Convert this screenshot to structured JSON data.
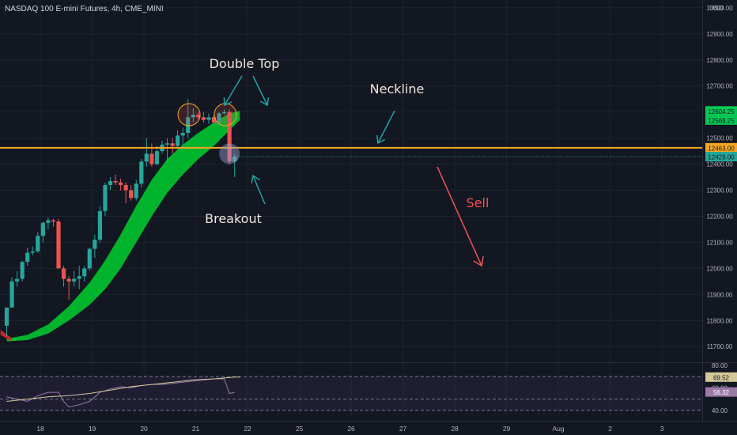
{
  "header": {
    "symbol_line": "NASDAQ 100 E-mini Futures, 4h, CME_MINI",
    "currency": "USD"
  },
  "chart_data": {
    "type": "candlestick",
    "price_axis": {
      "ylim": [
        11640,
        13030
      ],
      "ticks": [
        11700,
        11800,
        11900,
        12000,
        12100,
        12200,
        12300,
        12400,
        12500,
        12600,
        12700,
        12800,
        12900,
        13000
      ],
      "tick_labels": [
        "11700.00",
        "11800.00",
        "11900.00",
        "12000.00",
        "12100.00",
        "12200.00",
        "12300.00",
        "12400.00",
        "12500.00",
        "12600.00",
        "12700.00",
        "12800.00",
        "12900.00",
        "13000.00"
      ]
    },
    "time_axis": {
      "labels": [
        "18",
        "19",
        "20",
        "21",
        "22",
        "25",
        "26",
        "27",
        "28",
        "29",
        "Aug",
        "2",
        "3"
      ],
      "label_slots": [
        6.5,
        16.5,
        26.5,
        36.5,
        46.5,
        56.5,
        66.5,
        76.5,
        86.5,
        96.5,
        106.5,
        116.5,
        126.5
      ]
    },
    "candles": [
      {
        "o": 11780,
        "h": 11850,
        "l": 11740,
        "c": 11850
      },
      {
        "o": 11850,
        "h": 11965,
        "l": 11850,
        "c": 11950
      },
      {
        "o": 11950,
        "h": 11990,
        "l": 11930,
        "c": 11960
      },
      {
        "o": 11960,
        "h": 12030,
        "l": 11950,
        "c": 12025
      },
      {
        "o": 12025,
        "h": 12080,
        "l": 12010,
        "c": 12060
      },
      {
        "o": 12060,
        "h": 12085,
        "l": 12050,
        "c": 12065
      },
      {
        "o": 12065,
        "h": 12140,
        "l": 12060,
        "c": 12125
      },
      {
        "o": 12125,
        "h": 12180,
        "l": 12100,
        "c": 12175
      },
      {
        "o": 12175,
        "h": 12195,
        "l": 12150,
        "c": 12185
      },
      {
        "o": 12185,
        "h": 12190,
        "l": 12160,
        "c": 12180
      },
      {
        "o": 12180,
        "h": 12190,
        "l": 12000,
        "c": 12000
      },
      {
        "o": 12000,
        "h": 12010,
        "l": 11930,
        "c": 11960
      },
      {
        "o": 11960,
        "h": 11970,
        "l": 11880,
        "c": 11950
      },
      {
        "o": 11950,
        "h": 11990,
        "l": 11930,
        "c": 11960
      },
      {
        "o": 11960,
        "h": 12010,
        "l": 11920,
        "c": 11970
      },
      {
        "o": 11970,
        "h": 12010,
        "l": 11950,
        "c": 12000
      },
      {
        "o": 12000,
        "h": 12080,
        "l": 11990,
        "c": 12075
      },
      {
        "o": 12075,
        "h": 12130,
        "l": 12040,
        "c": 12110
      },
      {
        "o": 12110,
        "h": 12240,
        "l": 12100,
        "c": 12220
      },
      {
        "o": 12220,
        "h": 12330,
        "l": 12200,
        "c": 12320
      },
      {
        "o": 12320,
        "h": 12350,
        "l": 12300,
        "c": 12335
      },
      {
        "o": 12335,
        "h": 12360,
        "l": 12320,
        "c": 12330
      },
      {
        "o": 12330,
        "h": 12345,
        "l": 12300,
        "c": 12320
      },
      {
        "o": 12320,
        "h": 12330,
        "l": 12250,
        "c": 12300
      },
      {
        "o": 12300,
        "h": 12320,
        "l": 12260,
        "c": 12270
      },
      {
        "o": 12270,
        "h": 12340,
        "l": 12260,
        "c": 12325
      },
      {
        "o": 12325,
        "h": 12420,
        "l": 12310,
        "c": 12410
      },
      {
        "o": 12410,
        "h": 12500,
        "l": 12390,
        "c": 12440
      },
      {
        "o": 12440,
        "h": 12480,
        "l": 12390,
        "c": 12400
      },
      {
        "o": 12400,
        "h": 12470,
        "l": 12395,
        "c": 12450
      },
      {
        "o": 12450,
        "h": 12490,
        "l": 12440,
        "c": 12475
      },
      {
        "o": 12475,
        "h": 12500,
        "l": 12400,
        "c": 12480
      },
      {
        "o": 12480,
        "h": 12500,
        "l": 12440,
        "c": 12470
      },
      {
        "o": 12470,
        "h": 12530,
        "l": 12460,
        "c": 12510
      },
      {
        "o": 12510,
        "h": 12540,
        "l": 12470,
        "c": 12520
      },
      {
        "o": 12520,
        "h": 12650,
        "l": 12500,
        "c": 12580
      },
      {
        "o": 12580,
        "h": 12615,
        "l": 12560,
        "c": 12590
      },
      {
        "o": 12590,
        "h": 12600,
        "l": 12570,
        "c": 12580
      },
      {
        "o": 12580,
        "h": 12600,
        "l": 12560,
        "c": 12570
      },
      {
        "o": 12570,
        "h": 12595,
        "l": 12555,
        "c": 12580
      },
      {
        "o": 12580,
        "h": 12590,
        "l": 12555,
        "c": 12560
      },
      {
        "o": 12560,
        "h": 12600,
        "l": 12550,
        "c": 12595
      },
      {
        "o": 12595,
        "h": 12610,
        "l": 12590,
        "c": 12600
      },
      {
        "o": 12600,
        "h": 12610,
        "l": 12400,
        "c": 12410
      },
      {
        "o": 12410,
        "h": 12440,
        "l": 12350,
        "c": 12429
      }
    ],
    "ma_band": {
      "upper": [
        [
          0,
          11730
        ],
        [
          4,
          11745
        ],
        [
          8,
          11785
        ],
        [
          12,
          11855
        ],
        [
          16,
          11945
        ],
        [
          19,
          12030
        ],
        [
          22,
          12130
        ],
        [
          25,
          12240
        ],
        [
          28,
          12340
        ],
        [
          31,
          12420
        ],
        [
          34,
          12475
        ],
        [
          37,
          12520
        ],
        [
          40,
          12560
        ],
        [
          43,
          12595
        ],
        [
          45,
          12604.25
        ]
      ],
      "lower": [
        [
          0,
          11720
        ],
        [
          4,
          11725
        ],
        [
          8,
          11750
        ],
        [
          12,
          11800
        ],
        [
          16,
          11860
        ],
        [
          19,
          11920
        ],
        [
          22,
          12000
        ],
        [
          25,
          12100
        ],
        [
          28,
          12200
        ],
        [
          31,
          12290
        ],
        [
          34,
          12360
        ],
        [
          37,
          12420
        ],
        [
          40,
          12470
        ],
        [
          43,
          12530
        ],
        [
          45,
          12569.25
        ]
      ]
    },
    "neckline": 12463.0,
    "last_price_line": 12429.0,
    "price_labels": [
      {
        "value": 12604.25,
        "text": "12604.25",
        "color": "#00c853"
      },
      {
        "value": 12569.25,
        "text": "12569.25",
        "color": "#00c853"
      },
      {
        "value": 12463.0,
        "text": "12463.00",
        "color": "#f5a623"
      },
      {
        "value": 12429.0,
        "text": "12429.00",
        "color": "#26a69a"
      }
    ],
    "annotations": [
      {
        "text": "Double Top",
        "color": "#f0e6dc"
      },
      {
        "text": "Neckline",
        "color": "#f0e6dc"
      },
      {
        "text": "Breakout",
        "color": "#f0e6dc"
      },
      {
        "text": "Sell",
        "color": "#f05454"
      }
    ],
    "oscillator": {
      "ylim": [
        35,
        82
      ],
      "levels": [
        70,
        50,
        40
      ],
      "axis_ticks": [
        80,
        60,
        40
      ],
      "axis_labels": [
        "80.00",
        "60.00",
        "40.00"
      ],
      "value_labels": [
        {
          "value": 69.52,
          "text": "69.52",
          "color": "#d4c89a",
          "text_color": "#131722"
        },
        {
          "value": 56.32,
          "text": "56.32",
          "color": "#9b7aa6",
          "text_color": "#ffffff"
        }
      ],
      "main_line": [
        [
          0,
          52
        ],
        [
          2,
          50
        ],
        [
          4,
          48
        ],
        [
          6,
          53
        ],
        [
          8,
          56
        ],
        [
          10,
          56
        ],
        [
          11,
          48
        ],
        [
          12,
          43
        ],
        [
          14,
          45
        ],
        [
          16,
          48
        ],
        [
          18,
          56
        ],
        [
          20,
          59
        ],
        [
          22,
          61
        ],
        [
          24,
          60
        ],
        [
          26,
          62
        ],
        [
          28,
          63
        ],
        [
          30,
          63
        ],
        [
          32,
          64
        ],
        [
          34,
          65
        ],
        [
          36,
          66
        ],
        [
          38,
          67
        ],
        [
          40,
          68
        ],
        [
          42,
          68
        ],
        [
          43,
          55
        ],
        [
          44,
          56
        ]
      ],
      "signal_line": [
        [
          0,
          48
        ],
        [
          4,
          50
        ],
        [
          8,
          52
        ],
        [
          12,
          53
        ],
        [
          16,
          55
        ],
        [
          20,
          58
        ],
        [
          24,
          61
        ],
        [
          28,
          63
        ],
        [
          32,
          65
        ],
        [
          36,
          67
        ],
        [
          40,
          68
        ],
        [
          44,
          69.5
        ],
        [
          45,
          69.52
        ]
      ]
    },
    "colors": {
      "up": "#26a69a",
      "down": "#ef5350",
      "ma_band": "#00b32c",
      "neckline": "#f5a623",
      "annotation_arrow": "#21a3a3",
      "sell": "#f05454",
      "background": "#131722",
      "grid": "#1e222d",
      "axis_text": "#b2b5be",
      "rsi_line": "#9b7aa6",
      "rsi_signal": "#d4c89a",
      "rsi_band": "#7e57c2"
    }
  }
}
